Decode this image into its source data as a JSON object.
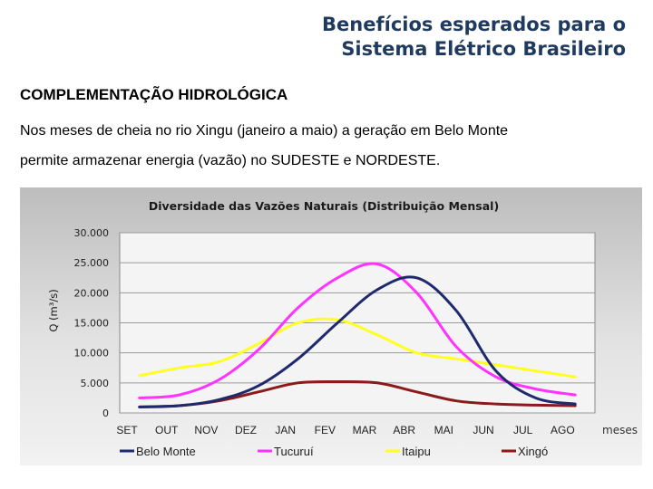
{
  "slide": {
    "title_line1": "Benefícios esperados para o",
    "title_line2": "Sistema Elétrico Brasileiro",
    "subheading": "COMPLEMENTAÇÃO HIDROLÓGICA",
    "paragraph_line1": "Nos meses de cheia no rio Xingu (janeiro a maio) a geração em Belo Monte",
    "paragraph_line2": "permite armazenar energia (vazão) no SUDESTE e NORDESTE."
  },
  "chart_data": {
    "type": "line",
    "title": "Diversidade das Vazões Naturais (Distribuição Mensal)",
    "ylabel": "Q (m³/s)",
    "xlabel": "meses",
    "categories": [
      "SET",
      "OUT",
      "NOV",
      "DEZ",
      "JAN",
      "FEV",
      "MAR",
      "ABR",
      "MAI",
      "JUN",
      "JUL",
      "AGO"
    ],
    "y_ticks": [
      "30.000",
      "25.000",
      "20.000",
      "15.000",
      "10.000",
      "5.000",
      "0"
    ],
    "ylim": [
      0,
      30000
    ],
    "grid": true,
    "legend_position": "bottom",
    "series": [
      {
        "name": "Belo Monte",
        "color": "#1f2a6e",
        "values": [
          1000,
          1200,
          2200,
          4500,
          9000,
          15000,
          20500,
          22500,
          17000,
          7000,
          2500,
          1500
        ]
      },
      {
        "name": "Tucuruí",
        "color": "#ff33ff",
        "values": [
          2500,
          3000,
          5500,
          10500,
          17500,
          22500,
          24800,
          20000,
          11000,
          6000,
          4000,
          3000
        ]
      },
      {
        "name": "Itaipu",
        "color": "#ffff22",
        "values": [
          6200,
          7500,
          8500,
          11500,
          15000,
          15500,
          13000,
          10000,
          9000,
          8000,
          7000,
          6000
        ]
      },
      {
        "name": "Xingó",
        "color": "#8b1a1a",
        "values": [
          1000,
          1200,
          2000,
          3500,
          5000,
          5200,
          5000,
          3500,
          2000,
          1500,
          1300,
          1200
        ]
      }
    ]
  }
}
